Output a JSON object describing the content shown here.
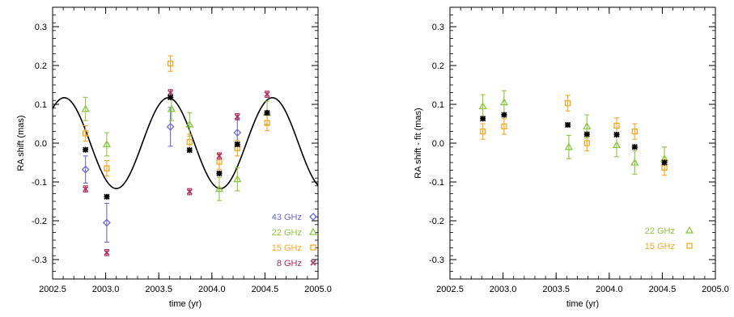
{
  "chart_data": [
    {
      "type": "scatter",
      "xlabel": "time (yr)",
      "ylabel": "RA shift (mas)",
      "xlim": [
        2002.5,
        2005.0
      ],
      "ylim": [
        -0.35,
        0.35
      ],
      "x_ticks": [
        "2002.5",
        "2003.0",
        "2003.5",
        "2004.0",
        "2004.5",
        "2005.0"
      ],
      "y_ticks": [
        "-0.3",
        "-0.2",
        "-0.1",
        "0.0",
        "0.1",
        "0.2",
        "0.3"
      ],
      "grid": false,
      "legend_position": "bottom-right",
      "series": [
        {
          "name": "43 GHz",
          "color": "#6b6bd6",
          "marker": "diamond",
          "points": [
            {
              "x": 2002.81,
              "y": -0.068,
              "err": 0.035
            },
            {
              "x": 2003.01,
              "y": -0.205,
              "err": 0.05
            },
            {
              "x": 2003.61,
              "y": 0.042,
              "err": 0.05
            },
            {
              "x": 2004.24,
              "y": 0.027,
              "err": 0.035
            }
          ]
        },
        {
          "name": "22 GHz",
          "color": "#8cc63f",
          "marker": "triangle",
          "points": [
            {
              "x": 2002.81,
              "y": 0.088,
              "err": 0.03
            },
            {
              "x": 2003.01,
              "y": -0.003,
              "err": 0.03
            },
            {
              "x": 2003.62,
              "y": 0.088,
              "err": 0.03
            },
            {
              "x": 2003.79,
              "y": 0.048,
              "err": 0.03
            },
            {
              "x": 2004.07,
              "y": -0.118,
              "err": 0.03
            },
            {
              "x": 2004.24,
              "y": -0.093,
              "err": 0.03
            },
            {
              "x": 2004.52,
              "y": 0.078,
              "err": 0.03
            }
          ]
        },
        {
          "name": "15 GHz",
          "color": "#f5a623",
          "marker": "square",
          "points": [
            {
              "x": 2002.81,
              "y": 0.025,
              "err": 0.02
            },
            {
              "x": 2003.01,
              "y": -0.065,
              "err": 0.02
            },
            {
              "x": 2003.61,
              "y": 0.205,
              "err": 0.02
            },
            {
              "x": 2003.79,
              "y": 0.003,
              "err": 0.02
            },
            {
              "x": 2004.07,
              "y": -0.048,
              "err": 0.02
            },
            {
              "x": 2004.24,
              "y": -0.013,
              "err": 0.02
            },
            {
              "x": 2004.52,
              "y": 0.052,
              "err": 0.02
            }
          ]
        },
        {
          "name": "8 GHz",
          "color": "#b03060",
          "marker": "cross",
          "points": [
            {
              "x": 2002.81,
              "y": -0.118,
              "err": 0.008
            },
            {
              "x": 2003.01,
              "y": -0.282,
              "err": 0.008
            },
            {
              "x": 2003.61,
              "y": 0.13,
              "err": 0.008
            },
            {
              "x": 2003.79,
              "y": -0.125,
              "err": 0.008
            },
            {
              "x": 2004.07,
              "y": -0.033,
              "err": 0.008
            },
            {
              "x": 2004.24,
              "y": 0.068,
              "err": 0.008
            },
            {
              "x": 2004.52,
              "y": 0.126,
              "err": 0.008
            }
          ]
        },
        {
          "name": "",
          "color": "#000000",
          "marker": "asterisk",
          "points": [
            {
              "x": 2002.81,
              "y": -0.017
            },
            {
              "x": 2003.01,
              "y": -0.138
            },
            {
              "x": 2003.61,
              "y": 0.118
            },
            {
              "x": 2003.79,
              "y": -0.018
            },
            {
              "x": 2004.07,
              "y": -0.078
            },
            {
              "x": 2004.24,
              "y": -0.003
            },
            {
              "x": 2004.52,
              "y": 0.078
            }
          ]
        }
      ],
      "fit_curve": {
        "amplitude": 0.117,
        "period": 0.98,
        "peak_x": 2003.59,
        "color": "#000000"
      },
      "legend": [
        "43 GHz",
        "22 GHz",
        "15 GHz",
        "8 GHz"
      ]
    },
    {
      "type": "scatter",
      "xlabel": "time (yr)",
      "ylabel": "RA shift - fit (mas)",
      "xlim": [
        2002.5,
        2005.0
      ],
      "ylim": [
        -0.35,
        0.35
      ],
      "x_ticks": [
        "2002.5",
        "2003.0",
        "2003.5",
        "2004.0",
        "2004.5",
        "2005.0"
      ],
      "y_ticks": [
        "-0.3",
        "-0.2",
        "-0.1",
        "0.0",
        "0.1",
        "0.2",
        "0.3"
      ],
      "grid": false,
      "legend_position": "bottom-right",
      "series": [
        {
          "name": "22 GHz",
          "color": "#8cc63f",
          "marker": "triangle",
          "points": [
            {
              "x": 2002.81,
              "y": 0.095,
              "err": 0.03
            },
            {
              "x": 2003.01,
              "y": 0.105,
              "err": 0.03
            },
            {
              "x": 2003.62,
              "y": -0.01,
              "err": 0.03
            },
            {
              "x": 2003.79,
              "y": 0.043,
              "err": 0.03
            },
            {
              "x": 2004.07,
              "y": -0.005,
              "err": 0.03
            },
            {
              "x": 2004.24,
              "y": -0.05,
              "err": 0.03
            },
            {
              "x": 2004.52,
              "y": -0.04,
              "err": 0.03
            }
          ]
        },
        {
          "name": "15 GHz",
          "color": "#f5a623",
          "marker": "square",
          "points": [
            {
              "x": 2002.81,
              "y": 0.03,
              "err": 0.02
            },
            {
              "x": 2003.01,
              "y": 0.043,
              "err": 0.02
            },
            {
              "x": 2003.61,
              "y": 0.103,
              "err": 0.02
            },
            {
              "x": 2003.79,
              "y": 0.0,
              "err": 0.02
            },
            {
              "x": 2004.07,
              "y": 0.045,
              "err": 0.02
            },
            {
              "x": 2004.24,
              "y": 0.03,
              "err": 0.02
            },
            {
              "x": 2004.52,
              "y": -0.063,
              "err": 0.02
            }
          ]
        },
        {
          "name": "",
          "color": "#000000",
          "marker": "asterisk",
          "points": [
            {
              "x": 2002.81,
              "y": 0.063
            },
            {
              "x": 2003.01,
              "y": 0.073
            },
            {
              "x": 2003.61,
              "y": 0.047
            },
            {
              "x": 2003.79,
              "y": 0.023
            },
            {
              "x": 2004.07,
              "y": 0.022
            },
            {
              "x": 2004.24,
              "y": -0.01
            },
            {
              "x": 2004.52,
              "y": -0.05
            }
          ]
        }
      ],
      "legend": [
        "22 GHz",
        "15 GHz"
      ]
    }
  ]
}
